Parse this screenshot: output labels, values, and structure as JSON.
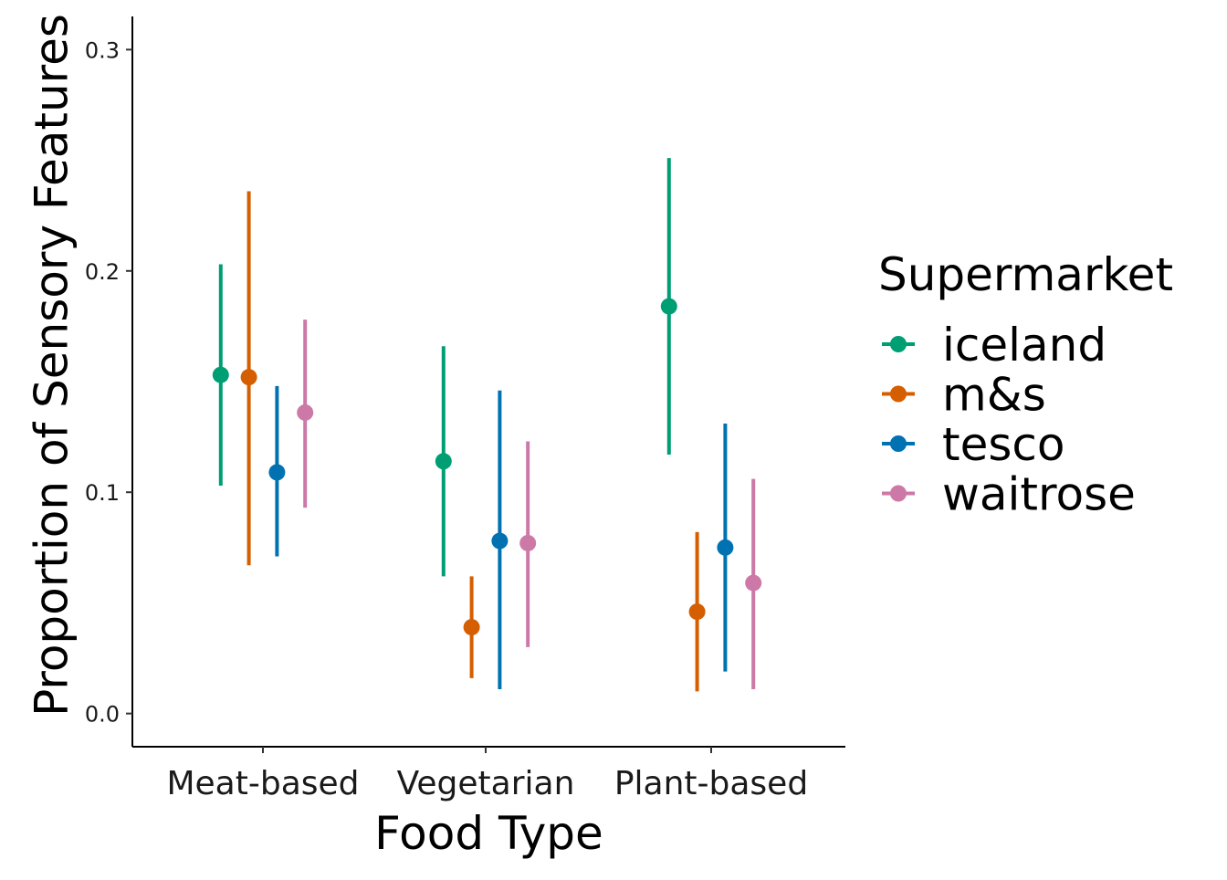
{
  "chart_data": {
    "type": "scatter",
    "subtype": "pointrange",
    "xlabel": "Food Type",
    "ylabel": "Proportion of Sensory Features",
    "categories": [
      "Meat-based",
      "Vegetarian",
      "Plant-based"
    ],
    "ylim": [
      -0.015,
      0.315
    ],
    "yticks": [
      0.0,
      0.1,
      0.2,
      0.3
    ],
    "ytick_labels": [
      "0.0",
      "0.1",
      "0.2",
      "0.3"
    ],
    "grid": false,
    "legend": {
      "title": "Supermarket",
      "position": "right"
    },
    "series": [
      {
        "name": "iceland",
        "color": "#009E73",
        "values": [
          0.153,
          0.114,
          0.184
        ],
        "lower": [
          0.103,
          0.062,
          0.117
        ],
        "upper": [
          0.203,
          0.166,
          0.251
        ]
      },
      {
        "name": "m&s",
        "color": "#D55E00",
        "values": [
          0.152,
          0.039,
          0.046
        ],
        "lower": [
          0.067,
          0.016,
          0.01
        ],
        "upper": [
          0.236,
          0.062,
          0.082
        ]
      },
      {
        "name": "tesco",
        "color": "#0072B2",
        "values": [
          0.109,
          0.078,
          0.075
        ],
        "lower": [
          0.071,
          0.011,
          0.019
        ],
        "upper": [
          0.148,
          0.146,
          0.131
        ]
      },
      {
        "name": "waitrose",
        "color": "#CC79A7",
        "values": [
          0.136,
          0.077,
          0.059
        ],
        "lower": [
          0.093,
          0.03,
          0.011
        ],
        "upper": [
          0.178,
          0.123,
          0.106
        ]
      }
    ]
  }
}
